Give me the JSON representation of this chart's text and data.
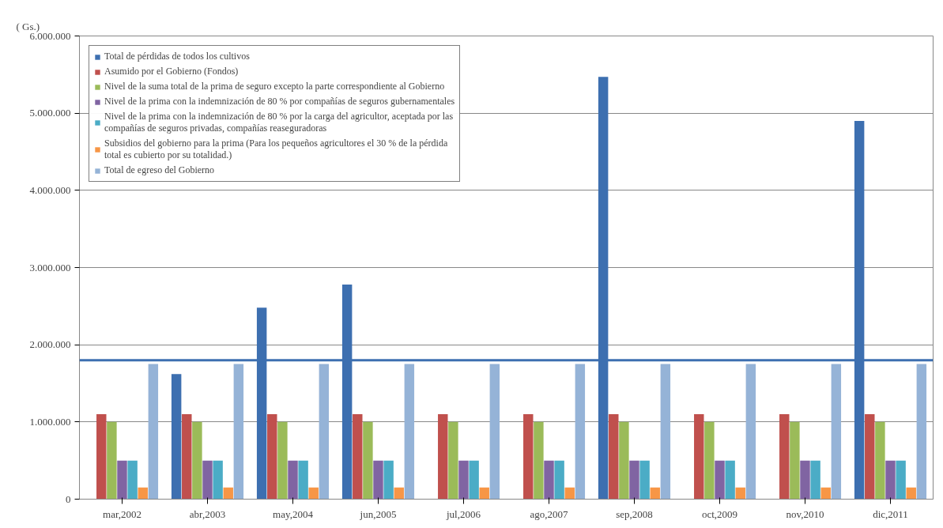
{
  "chart_data": {
    "type": "bar",
    "ylabel": "( Gs.)",
    "categories": [
      "mar,2002",
      "abr,2003",
      "may,2004",
      "jun,2005",
      "jul,2006",
      "ago,2007",
      "sep,2008",
      "oct,2009",
      "nov,2010",
      "dic,2011"
    ],
    "series": [
      {
        "name": "Total de pérdidas de todos los cultivos",
        "color": "#3d6fb0",
        "values": [
          null,
          1620000,
          2480000,
          2780000,
          null,
          null,
          5470000,
          null,
          null,
          4900000
        ]
      },
      {
        "name": "Asumido por el Gobierno (Fondos)",
        "color": "#c0504d",
        "values": [
          1100000,
          1100000,
          1100000,
          1100000,
          1100000,
          1100000,
          1100000,
          1100000,
          1100000,
          1100000
        ]
      },
      {
        "name": "Nivel de la suma total de la prima de seguro excepto la parte correspondiente al Gobierno",
        "color": "#9bbb59",
        "values": [
          1000000,
          1000000,
          1000000,
          1000000,
          1000000,
          1000000,
          1000000,
          1000000,
          1000000,
          1000000
        ]
      },
      {
        "name": "Nivel de la prima con la indemnización de 80 % por compañías de seguros gubernamentales",
        "color": "#8064a2",
        "values": [
          500000,
          500000,
          500000,
          500000,
          500000,
          500000,
          500000,
          500000,
          500000,
          500000
        ]
      },
      {
        "name": "Nivel de la prima con la indemnización de 80 % por la carga del agricultor, aceptada por las compañías de seguros privadas, compañías reaseguradoras",
        "color": "#4bacc6",
        "values": [
          500000,
          500000,
          500000,
          500000,
          500000,
          500000,
          500000,
          500000,
          500000,
          500000
        ]
      },
      {
        "name": "Subsidios del gobierno para la prima (Para los pequeños agricultores el 30 % de la pérdida total es cubierto por su totalidad.)",
        "color": "#f79646",
        "values": [
          150000,
          150000,
          150000,
          150000,
          150000,
          150000,
          150000,
          150000,
          150000,
          150000
        ]
      },
      {
        "name": "Total de egreso del Gobierno",
        "color": "#95b3d7",
        "values": [
          1750000,
          1750000,
          1750000,
          1750000,
          1750000,
          1750000,
          1750000,
          1750000,
          1750000,
          1750000
        ]
      }
    ],
    "ylim": [
      0,
      6000000
    ],
    "yticks": [
      0,
      {
        "value": 1000000,
        "label": "1.000.000"
      },
      {
        "value": 2000000,
        "label": "2.000.000"
      },
      {
        "value": 3000000,
        "label": "3.000.000"
      },
      {
        "value": 4000000,
        "label": "4.000.000"
      },
      {
        "value": 5000000,
        "label": "5.000.000"
      },
      {
        "value": 6000000,
        "label": "6.000.000"
      }
    ],
    "ref_lines": [
      {
        "axis": "y",
        "value": 1800000,
        "color": "#3d6fb0"
      }
    ],
    "grid": "y",
    "legend": "top left"
  }
}
